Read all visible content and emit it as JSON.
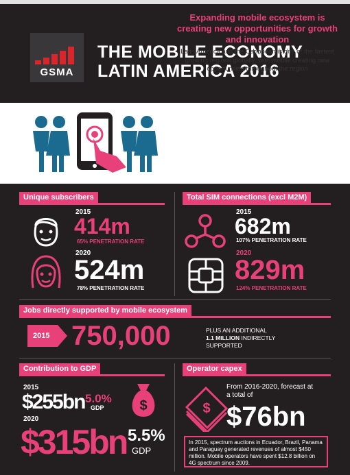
{
  "header": {
    "logo_text": "GSMA",
    "title_line1": "THE MOBILE ECONOMY",
    "title_line2": "LATIN AMERICA 2016"
  },
  "intro": {
    "headline": "Expanding mobile ecosystem is creating new opportunities for growth and innovation",
    "body": "Latin America and the Caribbean is one of the fastest growing regions globally, with mobile creating new opportunities throughout the region"
  },
  "unique_subscribers": {
    "label": "Unique subscribers",
    "year_2015": "2015",
    "value_2015": "414m",
    "rate_2015": "65% PENETRATION RATE",
    "year_2020": "2020",
    "value_2020": "524m",
    "rate_2020": "78% PENETRATION RATE"
  },
  "sim_connections": {
    "label": "Total SIM connections (excl M2M)",
    "year_2015": "2015",
    "value_2015": "682m",
    "rate_2015": "107% PENETRATION RATE",
    "year_2020": "2020",
    "value_2020": "829m",
    "rate_2020": "124% PENETRATION RATE"
  },
  "jobs": {
    "label": "Jobs directly supported by mobile ecosystem",
    "year": "2015",
    "value": "750,000",
    "note_prefix": "PLUS AN ADDITIONAL",
    "note_bold": "1.1 MILLION",
    "note_suffix": "INDIRECTLY",
    "note_line3": "SUPPORTED"
  },
  "gdp": {
    "label": "Contribution to GDP",
    "year_2015": "2015",
    "value_2015": "$255bn",
    "pct_2015": "5.0%",
    "gdp_2015": "GDP",
    "year_2020": "2020",
    "value_2020": "$315bn",
    "pct_2020": "5.5%",
    "gdp_2020": "GDP",
    "bag_symbol": "$"
  },
  "capex": {
    "label": "Operator capex",
    "forecast_line1": "From 2016-2020, forecast at",
    "forecast_line2": "a total of",
    "value": "$76bn",
    "note": "In 2015, spectrum auctions in Ecuador, Brazil, Panama and Paraguay generated revenues of almost $450 million. Mobile operators have spent $12.8 billion on 4G spectrum since 2009.",
    "money_symbol": "$"
  },
  "colors": {
    "accent_pink": "#e8417a",
    "brand_red": "#d9262b",
    "dark_bg": "#231f20",
    "people_blue": "#1b6a8f"
  },
  "icons": [
    "gsma-logo",
    "people-icon",
    "smartphone-icon",
    "hand-icon",
    "man-face-icon",
    "woman-face-icon",
    "network-icon",
    "sim-chip-icon",
    "money-bag-icon",
    "banknotes-icon"
  ]
}
